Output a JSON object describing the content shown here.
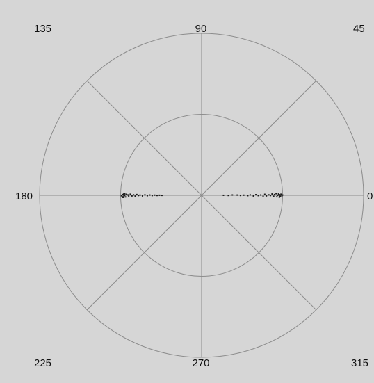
{
  "chart_data": {
    "type": "scatter",
    "coordinate_system": "polar",
    "title": "",
    "angle_labels": [
      "0",
      "45",
      "90",
      "135",
      "180",
      "225",
      "270",
      "315"
    ],
    "radial_axis": {
      "range": [
        0,
        1
      ],
      "rings": [
        0.5,
        1.0
      ]
    },
    "angular_gridlines_deg": [
      0,
      45,
      90,
      135,
      180,
      225,
      270,
      315
    ],
    "grid": true,
    "legend": "none",
    "series": [
      {
        "points_angle_deg_radius": [
          [
            0,
            0.94
          ],
          [
            0.5,
            0.96
          ],
          [
            -0.6,
            0.97
          ],
          [
            1.0,
            0.95
          ],
          [
            -1.1,
            0.93
          ],
          [
            0.8,
            0.98
          ],
          [
            -0.4,
            0.99
          ],
          [
            1.3,
            0.92
          ],
          [
            -1.4,
            0.96
          ],
          [
            0.2,
            1.0
          ],
          [
            0.6,
            0.9
          ],
          [
            -0.8,
            0.89
          ],
          [
            1.1,
            0.87
          ],
          [
            -0.2,
            0.85
          ],
          [
            0.4,
            0.83
          ],
          [
            -0.5,
            0.8
          ],
          [
            0.9,
            0.78
          ],
          [
            -1.0,
            0.76
          ],
          [
            0.3,
            0.73
          ],
          [
            -0.3,
            0.7
          ],
          [
            0.7,
            0.67
          ],
          [
            -0.7,
            0.64
          ],
          [
            0.5,
            0.6
          ],
          [
            -0.4,
            0.57
          ],
          [
            0.2,
            0.52
          ],
          [
            -0.2,
            0.48
          ],
          [
            0.4,
            0.44
          ],
          [
            0.6,
            0.38
          ],
          [
            -0.3,
            0.33
          ],
          [
            0.1,
            0.27
          ],
          [
            180,
            0.95
          ],
          [
            180.6,
            0.96
          ],
          [
            179.4,
            0.97
          ],
          [
            181.2,
            0.94
          ],
          [
            178.9,
            0.95
          ],
          [
            180.9,
            0.98
          ],
          [
            179.2,
            0.93
          ],
          [
            181.5,
            0.97
          ],
          [
            178.6,
            0.96
          ],
          [
            180.3,
            0.99
          ],
          [
            179.7,
            0.91
          ],
          [
            180.8,
            0.9
          ],
          [
            179.1,
            0.88
          ],
          [
            180.5,
            0.86
          ],
          [
            179.6,
            0.84
          ],
          [
            180.7,
            0.82
          ],
          [
            179.3,
            0.8
          ],
          [
            180.2,
            0.78
          ],
          [
            179.8,
            0.76
          ],
          [
            180.6,
            0.73
          ],
          [
            179.5,
            0.7
          ],
          [
            180.4,
            0.67
          ],
          [
            179.7,
            0.64
          ],
          [
            180.3,
            0.61
          ],
          [
            179.8,
            0.58
          ],
          [
            180.2,
            0.55
          ],
          [
            179.9,
            0.52
          ],
          [
            180.1,
            0.49
          ]
        ],
        "color": "#1a1a1a"
      }
    ]
  },
  "colors": {
    "background": "#d6d6d6",
    "grid": "#8c8c8c",
    "points": "#1a1a1a",
    "labels": "#111111"
  }
}
